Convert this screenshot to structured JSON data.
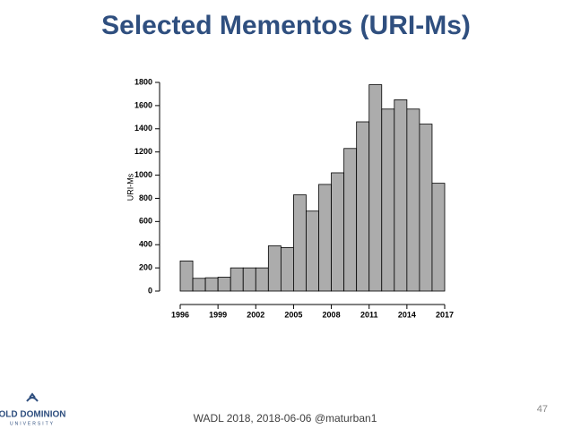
{
  "chart_data": {
    "type": "histogram",
    "title": "Selected Mementos (URI-Ms)",
    "ylabel": "URI-Ms",
    "bins": [
      1996,
      1997,
      1998,
      1999,
      2000,
      2001,
      2002,
      2003,
      2004,
      2005,
      2006,
      2007,
      2008,
      2009,
      2010,
      2011,
      2012,
      2013,
      2014,
      2015,
      2016,
      2017
    ],
    "values": [
      260,
      110,
      115,
      120,
      200,
      200,
      200,
      390,
      375,
      830,
      690,
      920,
      1020,
      1230,
      1460,
      1780,
      1570,
      1650,
      1570,
      1440,
      930
    ],
    "color": "#acacac",
    "xlim": [
      1996,
      2017
    ],
    "xticks": [
      1996,
      1999,
      2002,
      2005,
      2008,
      2011,
      2014,
      2017
    ],
    "ylim": [
      0,
      1800
    ],
    "yticks": [
      0,
      200,
      400,
      600,
      800,
      1000,
      1200,
      1400,
      1600,
      1800
    ]
  },
  "footer": "WADL 2018, 2018-06-06  @maturban1",
  "page_number": "47",
  "logo": {
    "name": "OLD DOMINION",
    "subtitle": "UNIVERSITY"
  }
}
